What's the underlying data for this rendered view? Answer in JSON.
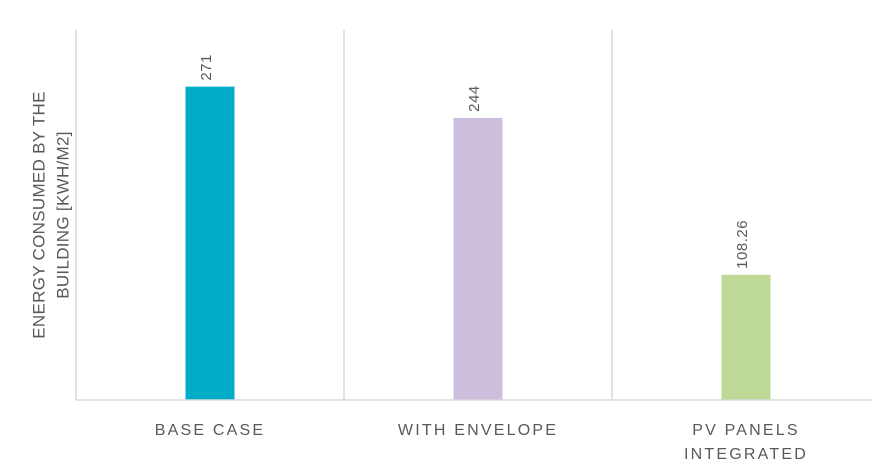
{
  "chart_data": {
    "type": "bar",
    "title": "",
    "xlabel": "",
    "ylabel_lines": [
      "ENERGY CONSUMED BY THE",
      "BUILDING [KWH/M2]"
    ],
    "categories": [
      [
        "BASE CASE"
      ],
      [
        "WITH ENVELOPE"
      ],
      [
        "PV PANELS",
        "INTEGRATED"
      ]
    ],
    "values": [
      271,
      244,
      108.26
    ],
    "value_labels": [
      "271",
      "244",
      "108.26"
    ],
    "bar_colors": [
      "#00acc8",
      "#ccbfdd",
      "#bcd996"
    ],
    "ylim": [
      0,
      320
    ],
    "grid": "vertical category separators",
    "legend": "none"
  }
}
